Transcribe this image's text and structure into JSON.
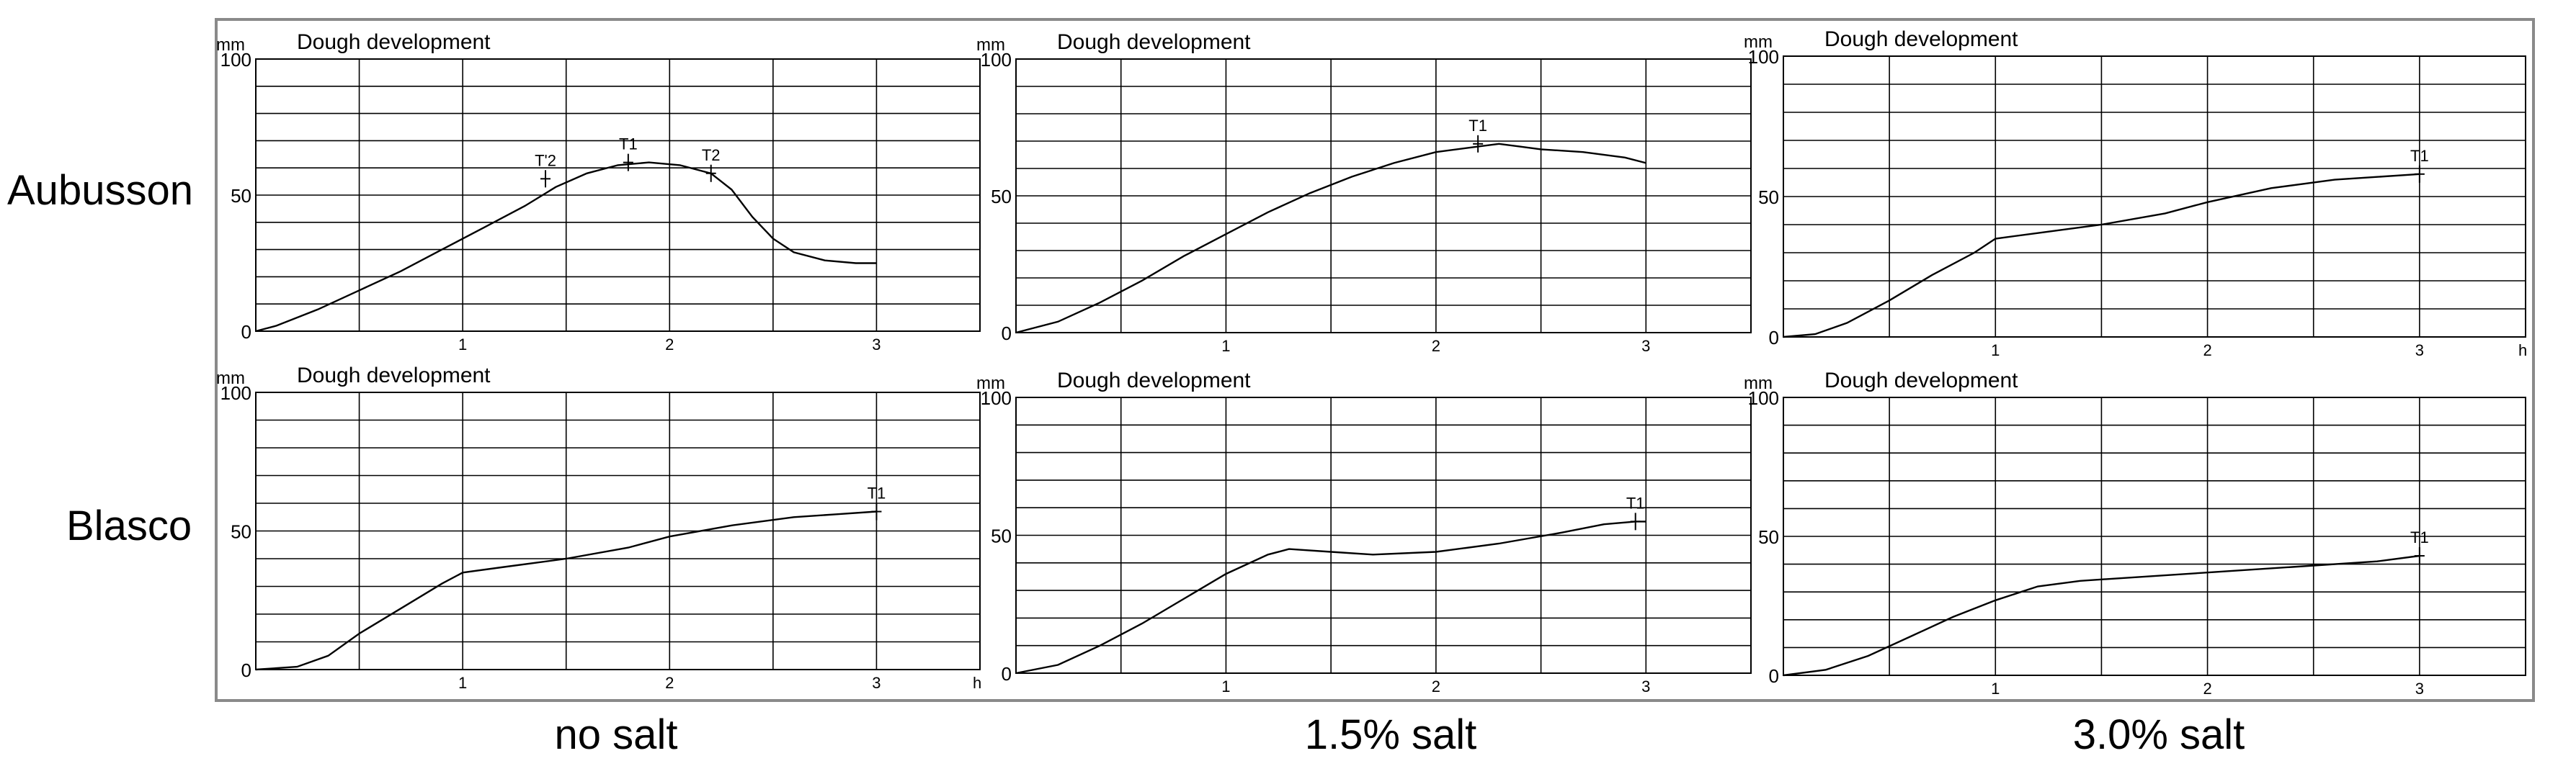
{
  "row_labels": [
    "Aubusson",
    "Blasco"
  ],
  "column_labels": [
    "no salt",
    "1.5% salt",
    "3.0% salt"
  ],
  "chart_data": [
    {
      "type": "line",
      "title": "Dough development",
      "row": "Aubusson",
      "column": "no salt",
      "ylabel": "mm",
      "xlabel": "h",
      "show_xlabel": false,
      "ylim": [
        0,
        100
      ],
      "xlim": [
        0,
        3.5
      ],
      "yticks": [
        0,
        50,
        100
      ],
      "xticks": [
        1,
        2,
        3
      ],
      "grid": true,
      "x": [
        0,
        0.1,
        0.3,
        0.5,
        0.7,
        0.9,
        1.1,
        1.3,
        1.45,
        1.6,
        1.75,
        1.9,
        2.05,
        2.2,
        2.3,
        2.4,
        2.5,
        2.6,
        2.75,
        2.9,
        3.0
      ],
      "y": [
        0,
        2,
        8,
        15,
        22,
        30,
        38,
        46,
        53,
        58,
        61,
        62,
        61,
        58,
        52,
        42,
        34,
        29,
        26,
        25,
        25
      ],
      "markers": [
        {
          "label": "T'2",
          "x": 1.4,
          "y": 56
        },
        {
          "label": "T1",
          "x": 1.8,
          "y": 62
        },
        {
          "label": "T2",
          "x": 2.2,
          "y": 58
        }
      ]
    },
    {
      "type": "line",
      "title": "Dough development",
      "row": "Aubusson",
      "column": "1.5% salt",
      "ylabel": "mm",
      "xlabel": "h",
      "show_xlabel": false,
      "ylim": [
        0,
        100
      ],
      "xlim": [
        0,
        3.5
      ],
      "yticks": [
        0,
        50,
        100
      ],
      "xticks": [
        1,
        2,
        3
      ],
      "grid": true,
      "x": [
        0,
        0.2,
        0.4,
        0.6,
        0.8,
        1.0,
        1.2,
        1.4,
        1.6,
        1.8,
        2.0,
        2.2,
        2.3,
        2.4,
        2.5,
        2.7,
        2.9,
        3.0
      ],
      "y": [
        0,
        4,
        11,
        19,
        28,
        36,
        44,
        51,
        57,
        62,
        66,
        68,
        69,
        68,
        67,
        66,
        64,
        62
      ],
      "markers": [
        {
          "label": "T1",
          "x": 2.2,
          "y": 69
        }
      ]
    },
    {
      "type": "line",
      "title": "Dough development",
      "row": "Aubusson",
      "column": "3.0% salt",
      "ylabel": "mm",
      "xlabel": "h",
      "show_xlabel": true,
      "ylim": [
        0,
        100
      ],
      "xlim": [
        0,
        3.5
      ],
      "yticks": [
        0,
        50,
        100
      ],
      "xticks": [
        1,
        2,
        3
      ],
      "grid": true,
      "x": [
        0,
        0.15,
        0.3,
        0.5,
        0.7,
        0.9,
        1.0,
        1.2,
        1.5,
        1.8,
        2.0,
        2.3,
        2.6,
        2.8,
        3.0
      ],
      "y": [
        0,
        1,
        5,
        13,
        22,
        30,
        35,
        37,
        40,
        44,
        48,
        53,
        56,
        57,
        58
      ],
      "markers": [
        {
          "label": "T1",
          "x": 3.0,
          "y": 58
        }
      ]
    },
    {
      "type": "line",
      "title": "Dough development",
      "row": "Blasco",
      "column": "no salt",
      "ylabel": "mm",
      "xlabel": "h",
      "show_xlabel": true,
      "ylim": [
        0,
        100
      ],
      "xlim": [
        0,
        3.5
      ],
      "yticks": [
        0,
        50,
        100
      ],
      "xticks": [
        1,
        2,
        3
      ],
      "grid": true,
      "x": [
        0,
        0.2,
        0.35,
        0.5,
        0.7,
        0.9,
        1.0,
        1.2,
        1.5,
        1.8,
        2.0,
        2.3,
        2.6,
        2.8,
        3.0
      ],
      "y": [
        0,
        1,
        5,
        13,
        22,
        31,
        35,
        37,
        40,
        44,
        48,
        52,
        55,
        56,
        57
      ],
      "markers": [
        {
          "label": "T1",
          "x": 3.0,
          "y": 57
        }
      ]
    },
    {
      "type": "line",
      "title": "Dough development",
      "row": "Blasco",
      "column": "1.5% salt",
      "ylabel": "mm",
      "xlabel": "h",
      "show_xlabel": false,
      "ylim": [
        0,
        100
      ],
      "xlim": [
        0,
        3.5
      ],
      "yticks": [
        0,
        50,
        100
      ],
      "xticks": [
        1,
        2,
        3
      ],
      "grid": true,
      "x": [
        0,
        0.2,
        0.4,
        0.6,
        0.8,
        1.0,
        1.2,
        1.3,
        1.5,
        1.7,
        2.0,
        2.3,
        2.6,
        2.8,
        2.95,
        3.0
      ],
      "y": [
        0,
        3,
        10,
        18,
        27,
        36,
        43,
        45,
        44,
        43,
        44,
        47,
        51,
        54,
        55,
        55
      ],
      "markers": [
        {
          "label": "T1",
          "x": 2.95,
          "y": 55
        }
      ]
    },
    {
      "type": "line",
      "title": "Dough development",
      "row": "Blasco",
      "column": "3.0% salt",
      "ylabel": "mm",
      "xlabel": "h",
      "show_xlabel": false,
      "ylim": [
        0,
        100
      ],
      "xlim": [
        0,
        3.5
      ],
      "yticks": [
        0,
        50,
        100
      ],
      "xticks": [
        1,
        2,
        3
      ],
      "grid": true,
      "x": [
        0,
        0.2,
        0.4,
        0.6,
        0.8,
        1.0,
        1.2,
        1.4,
        1.6,
        2.0,
        2.4,
        2.8,
        3.0
      ],
      "y": [
        0,
        2,
        7,
        14,
        21,
        27,
        32,
        34,
        35,
        37,
        39,
        41,
        43
      ],
      "markers": [
        {
          "label": "T1",
          "x": 3.0,
          "y": 43
        }
      ]
    }
  ]
}
